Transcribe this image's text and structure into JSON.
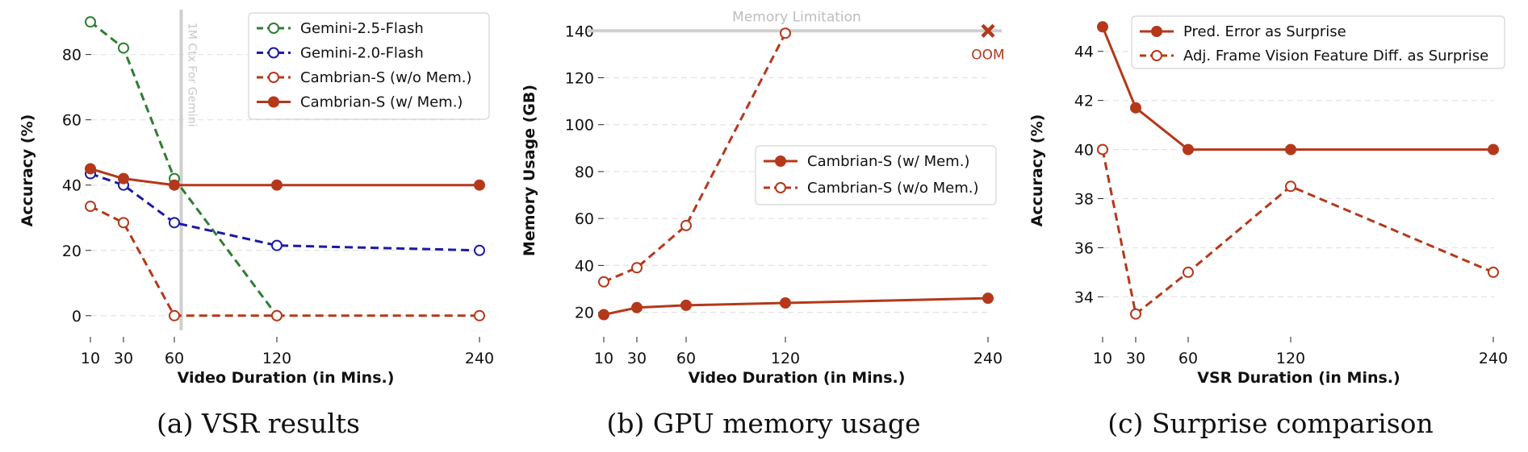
{
  "chart_data": [
    {
      "type": "line",
      "caption": "(a) VSR results",
      "xlabel": "Video Duration (in Mins.)",
      "ylabel": "Accuracy (%)",
      "x": [
        10,
        30,
        60,
        120,
        240
      ],
      "x_ticks": [
        "10",
        "30",
        "60",
        "120",
        "240"
      ],
      "y_ticks": [
        "0",
        "20",
        "40",
        "60",
        "80"
      ],
      "ylim": [
        -4,
        93
      ],
      "grid": true,
      "legend_position": "top-right",
      "vline": {
        "x": 64,
        "label": "1M Ctx For Gemini"
      },
      "series": [
        {
          "name": "Gemini-2.5-Flash",
          "values": [
            90,
            82,
            42,
            0,
            null
          ],
          "color": "#2e7d32",
          "style": "dashed",
          "marker": "open"
        },
        {
          "name": "Gemini-2.0-Flash",
          "values": [
            43.5,
            40,
            28.5,
            21.5,
            20
          ],
          "color": "#1a1aa6",
          "style": "dashed",
          "marker": "open"
        },
        {
          "name": "Cambrian-S (w/o Mem.)",
          "values": [
            33.5,
            28.5,
            0,
            0,
            0
          ],
          "color": "#b5381a",
          "style": "dashed",
          "marker": "open"
        },
        {
          "name": "Cambrian-S (w/ Mem.)",
          "values": [
            45,
            42,
            40,
            40,
            40
          ],
          "color": "#b5381a",
          "style": "solid",
          "marker": "filled"
        }
      ]
    },
    {
      "type": "line",
      "caption": "(b) GPU memory usage",
      "xlabel": "Video Duration (in Mins.)",
      "ylabel": "Memory Usage (GB)",
      "x": [
        10,
        30,
        60,
        120,
        240
      ],
      "x_ticks": [
        "10",
        "30",
        "60",
        "120",
        "240"
      ],
      "y_ticks": [
        "20",
        "40",
        "60",
        "80",
        "100",
        "120",
        "140"
      ],
      "ylim": [
        13,
        148
      ],
      "grid": true,
      "legend_position": "center-right",
      "hline": {
        "y": 140,
        "label": "Memory Limitation"
      },
      "oom": {
        "x": 240,
        "label": "OOM",
        "color": "#b5381a"
      },
      "series": [
        {
          "name": "Cambrian-S (w/ Mem.)",
          "values": [
            19,
            22,
            23,
            24,
            26
          ],
          "color": "#b5381a",
          "style": "solid",
          "marker": "filled"
        },
        {
          "name": "Cambrian-S (w/o Mem.)",
          "values": [
            33,
            39,
            57,
            139,
            null
          ],
          "color": "#b5381a",
          "style": "dashed",
          "marker": "open"
        }
      ]
    },
    {
      "type": "line",
      "caption": "(c) Surprise comparison",
      "xlabel": "VSR Duration (in Mins.)",
      "ylabel": "Accuracy (%)",
      "x": [
        10,
        30,
        60,
        120,
        240
      ],
      "x_ticks": [
        "10",
        "30",
        "60",
        "120",
        "240"
      ],
      "y_ticks": [
        "34",
        "36",
        "38",
        "40",
        "42",
        "44"
      ],
      "ylim": [
        32.7,
        45.6
      ],
      "grid": true,
      "legend_position": "top-right",
      "series": [
        {
          "name": "Pred. Error as Surprise",
          "values": [
            45,
            41.7,
            40,
            40,
            40
          ],
          "color": "#b5381a",
          "style": "solid",
          "marker": "filled"
        },
        {
          "name": "Adj. Frame Vision Feature Diff. as Surprise",
          "values": [
            40,
            33.3,
            35,
            38.5,
            35
          ],
          "color": "#b5381a",
          "style": "dashed",
          "marker": "open"
        }
      ]
    }
  ]
}
